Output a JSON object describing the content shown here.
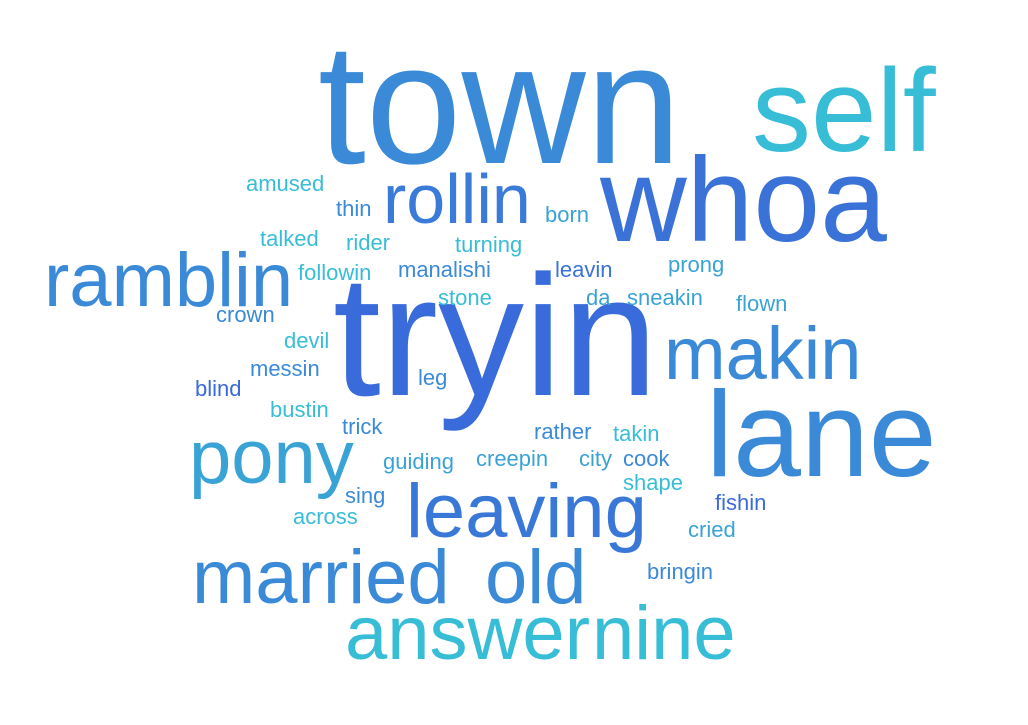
{
  "palette": {
    "blue": "#3a6fdb",
    "mid_blue": "#3a8ad8",
    "light_blue": "#3aa3d6",
    "cyan": "#38bdd6"
  },
  "words": {
    "town": "town",
    "self": "self",
    "whoa": "whoa",
    "rollin": "rollin",
    "ramblin": "ramblin",
    "tryin": "tryin",
    "makin": "makin",
    "lane": "lane",
    "pony": "pony",
    "leaving": "leaving",
    "married": "married",
    "old": "old",
    "answer": "answer",
    "nine": "nine",
    "amused": "amused",
    "thin": "thin",
    "born": "born",
    "talked": "talked",
    "rider": "rider",
    "turning": "turning",
    "followin": "followin",
    "manalishi": "manalishi",
    "leavin": "leavin",
    "prong": "prong",
    "stone": "stone",
    "da": "da",
    "sneakin": "sneakin",
    "flown": "flown",
    "crown": "crown",
    "devil": "devil",
    "messin": "messin",
    "leg": "leg",
    "blind": "blind",
    "bustin": "bustin",
    "trick": "trick",
    "rather": "rather",
    "takin": "takin",
    "guiding": "guiding",
    "creepin": "creepin",
    "city": "city",
    "cook": "cook",
    "shape": "shape",
    "sing": "sing",
    "across": "across",
    "fishin": "fishin",
    "cried": "cried",
    "bringin": "bringin"
  }
}
